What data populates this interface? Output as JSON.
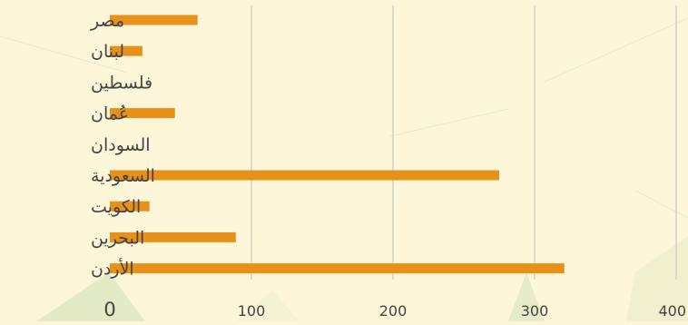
{
  "chart_data": {
    "type": "bar",
    "orientation": "horizontal",
    "categories": [
      "مصر",
      "لبنان",
      "فلسطين",
      "عُمان",
      "السودان",
      "السعودية",
      "الكويت",
      "البحرين",
      "الأردن"
    ],
    "values": [
      62,
      23,
      0,
      46,
      0,
      275,
      28,
      89,
      321
    ],
    "title": "",
    "xlabel": "",
    "ylabel": "",
    "xlim": [
      0,
      400
    ],
    "xticks": [
      0,
      100,
      200,
      300,
      400
    ],
    "grid": "vertical",
    "legend": "none",
    "colors": {
      "bar": "#e8911a",
      "grid": "#d2d0c6",
      "text": "#444444",
      "background": "#fdf6d8",
      "decor": "#d7e6bf"
    }
  }
}
